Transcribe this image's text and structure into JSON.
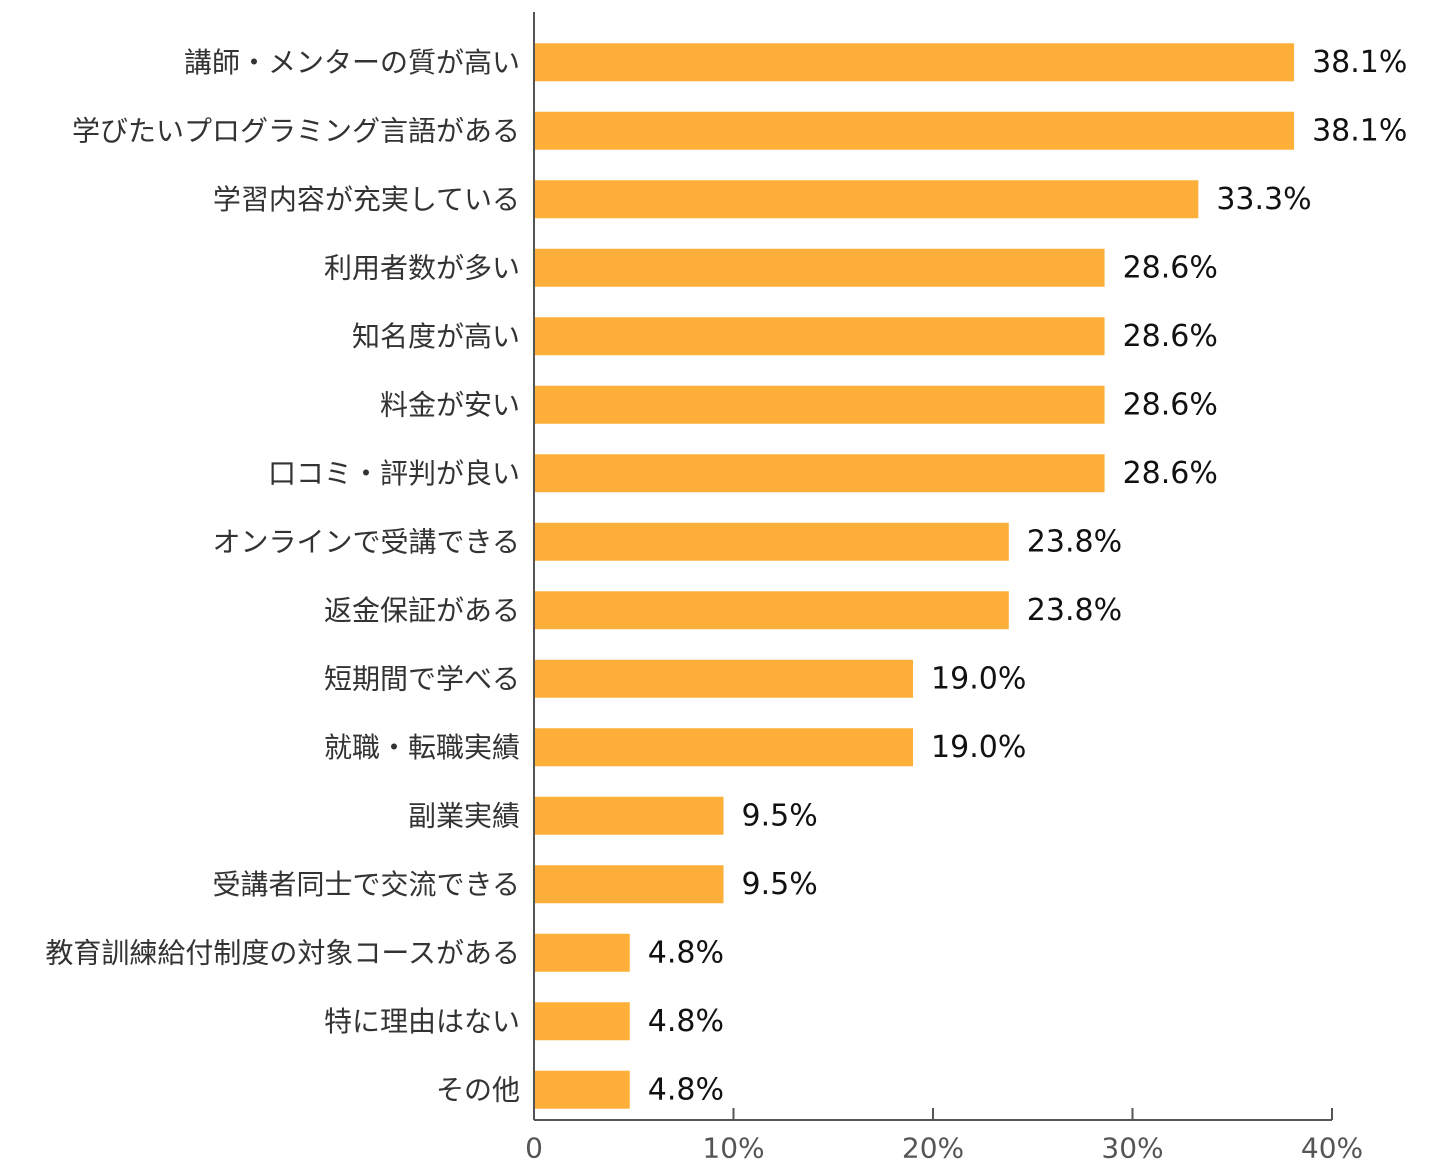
{
  "chart_data": {
    "type": "bar",
    "orientation": "horizontal",
    "categories": [
      "講師・メンターの質が高い",
      "学びたいプログラミング言語がある",
      "学習内容が充実している",
      "利用者数が多い",
      "知名度が高い",
      "料金が安い",
      "口コミ・評判が良い",
      "オンラインで受講できる",
      "返金保証がある",
      "短期間で学べる",
      "就職・転職実績",
      "副業実績",
      "受講者同士で交流できる",
      "教育訓練給付制度の対象コースがある",
      "特に理由はない",
      "その他"
    ],
    "values": [
      38.1,
      38.1,
      33.3,
      28.6,
      28.6,
      28.6,
      28.6,
      23.8,
      23.8,
      19.0,
      19.0,
      9.5,
      9.5,
      4.8,
      4.8,
      4.8
    ],
    "value_labels": [
      "38.1%",
      "38.1%",
      "33.3%",
      "28.6%",
      "28.6%",
      "28.6%",
      "28.6%",
      "23.8%",
      "23.8%",
      "19.0%",
      "19.0%",
      "9.5%",
      "9.5%",
      "4.8%",
      "4.8%",
      "4.8%"
    ],
    "xlim": [
      0,
      40
    ],
    "xticks": [
      0,
      10,
      20,
      30,
      40
    ],
    "xtick_labels": [
      "0",
      "10%",
      "20%",
      "30%",
      "40%"
    ],
    "title": "",
    "xlabel": "",
    "ylabel": "",
    "grid": false,
    "legend": "none",
    "bar_color": "#FDAF3A",
    "axis_color": "#555555"
  }
}
